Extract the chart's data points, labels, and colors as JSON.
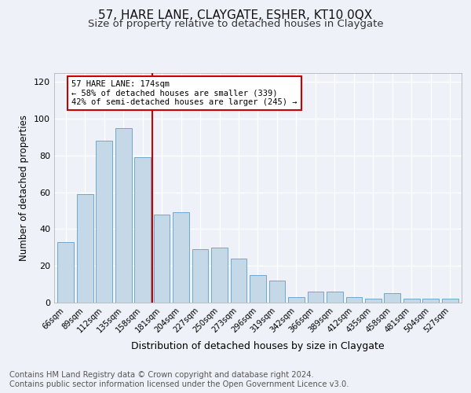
{
  "title1": "57, HARE LANE, CLAYGATE, ESHER, KT10 0QX",
  "title2": "Size of property relative to detached houses in Claygate",
  "xlabel": "Distribution of detached houses by size in Claygate",
  "ylabel": "Number of detached properties",
  "categories": [
    "66sqm",
    "89sqm",
    "112sqm",
    "135sqm",
    "158sqm",
    "181sqm",
    "204sqm",
    "227sqm",
    "250sqm",
    "273sqm",
    "296sqm",
    "319sqm",
    "342sqm",
    "366sqm",
    "389sqm",
    "412sqm",
    "435sqm",
    "458sqm",
    "481sqm",
    "504sqm",
    "527sqm"
  ],
  "values": [
    33,
    59,
    88,
    95,
    79,
    48,
    49,
    29,
    30,
    24,
    15,
    12,
    3,
    6,
    6,
    3,
    2,
    5,
    2,
    2,
    2
  ],
  "bar_color": "#c5d8e8",
  "bar_edge_color": "#6ea8cb",
  "vline_x": 4.5,
  "vline_color": "#cc0000",
  "annotation_line1": "57 HARE LANE: 174sqm",
  "annotation_line2": "← 58% of detached houses are smaller (339)",
  "annotation_line3": "42% of semi-detached houses are larger (245) →",
  "annotation_box_color": "#ffffff",
  "annotation_box_edge": "#cc0000",
  "ylim": [
    0,
    125
  ],
  "yticks": [
    0,
    20,
    40,
    60,
    80,
    100,
    120
  ],
  "background_color": "#eef2f8",
  "grid_color": "#ffffff",
  "footer_line1": "Contains HM Land Registry data © Crown copyright and database right 2024.",
  "footer_line2": "Contains public sector information licensed under the Open Government Licence v3.0.",
  "title1_fontsize": 11,
  "title2_fontsize": 9.5,
  "xlabel_fontsize": 9,
  "ylabel_fontsize": 8.5,
  "footer_fontsize": 7.2
}
